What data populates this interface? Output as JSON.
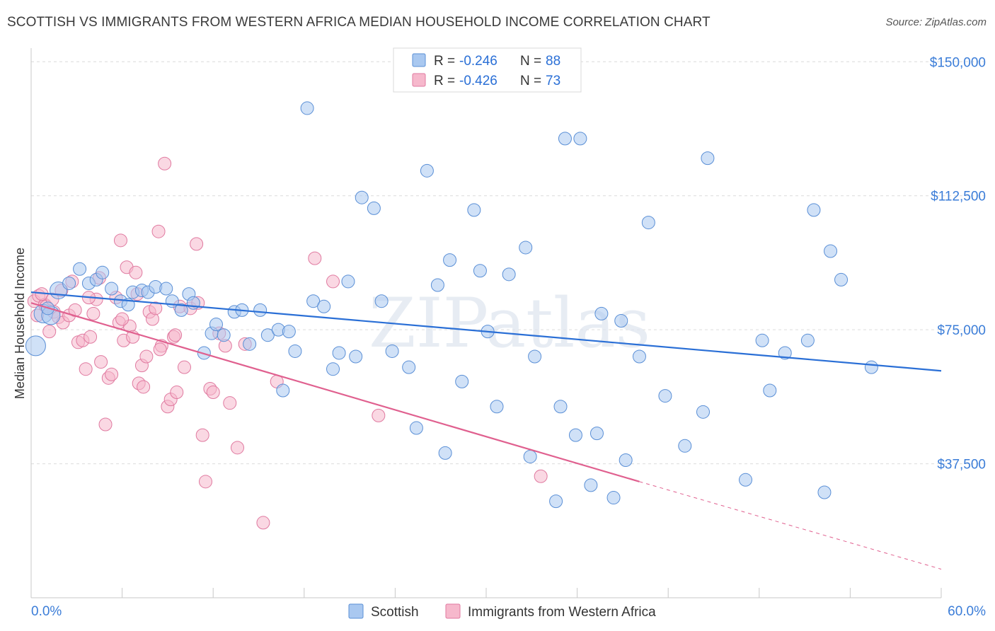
{
  "title": "SCOTTISH VS IMMIGRANTS FROM WESTERN AFRICA MEDIAN HOUSEHOLD INCOME CORRELATION CHART",
  "source": "Source: ZipAtlas.com",
  "watermark": "ZIPatlas",
  "colors": {
    "scottish_fill": "#a9c8f0",
    "scottish_stroke": "#5a8fd6",
    "scottish_line": "#2a6fd6",
    "immigrants_fill": "#f6b8cc",
    "immigrants_stroke": "#e07aa0",
    "immigrants_line": "#e0608f",
    "axis_label": "#3b7dd8",
    "grid": "#dcdcdc"
  },
  "legend": {
    "rows": [
      {
        "r_label": "R =",
        "r_value": "-0.246",
        "n_label": "N =",
        "n_value": "88"
      },
      {
        "r_label": "R =",
        "r_value": "-0.426",
        "n_label": "N =",
        "n_value": "73"
      }
    ]
  },
  "bottom_legend": [
    "Scottish",
    "Immigrants from Western Africa"
  ],
  "chart_data": {
    "type": "scatter",
    "xlabel": "",
    "ylabel": "Median Household Income",
    "x_tick_labels": [
      "0.0%",
      "60.0%"
    ],
    "y_tick_labels": [
      "$37,500",
      "$75,000",
      "$112,500",
      "$150,000"
    ],
    "xlim": [
      0,
      60
    ],
    "ylim": [
      0,
      155000
    ],
    "grid": true,
    "legend_position": "top-center",
    "series": [
      {
        "name": "Scottish",
        "trend": {
          "x": [
            0,
            60
          ],
          "y": [
            85500,
            63500
          ]
        },
        "points": [
          [
            0.3,
            70500
          ],
          [
            0.8,
            79500
          ],
          [
            1.3,
            79000
          ],
          [
            1.8,
            86000
          ],
          [
            2.5,
            88000
          ],
          [
            3.2,
            92000
          ],
          [
            3.8,
            88000
          ],
          [
            4.3,
            89000
          ],
          [
            4.7,
            91000
          ],
          [
            5.3,
            86500
          ],
          [
            5.9,
            83000
          ],
          [
            6.4,
            82000
          ],
          [
            6.7,
            85500
          ],
          [
            7.3,
            86000
          ],
          [
            7.7,
            85500
          ],
          [
            8.2,
            87000
          ],
          [
            8.9,
            86500
          ],
          [
            9.3,
            83000
          ],
          [
            9.9,
            80500
          ],
          [
            10.4,
            85000
          ],
          [
            10.7,
            82500
          ],
          [
            11.4,
            68500
          ],
          [
            11.9,
            74000
          ],
          [
            12.2,
            76500
          ],
          [
            12.7,
            73500
          ],
          [
            13.4,
            80000
          ],
          [
            13.9,
            80500
          ],
          [
            14.4,
            71000
          ],
          [
            15.1,
            80500
          ],
          [
            15.6,
            73500
          ],
          [
            16.3,
            75000
          ],
          [
            16.6,
            58000
          ],
          [
            17.0,
            74500
          ],
          [
            17.4,
            69000
          ],
          [
            18.2,
            137000
          ],
          [
            18.6,
            83000
          ],
          [
            19.3,
            81500
          ],
          [
            19.9,
            64000
          ],
          [
            20.3,
            68500
          ],
          [
            20.9,
            88500
          ],
          [
            21.4,
            67500
          ],
          [
            21.8,
            112000
          ],
          [
            22.6,
            109000
          ],
          [
            23.1,
            83000
          ],
          [
            23.8,
            69000
          ],
          [
            24.9,
            64500
          ],
          [
            26.1,
            119500
          ],
          [
            25.4,
            47500
          ],
          [
            26.8,
            87500
          ],
          [
            27.3,
            40500
          ],
          [
            27.6,
            94500
          ],
          [
            28.4,
            60500
          ],
          [
            29.2,
            108500
          ],
          [
            29.6,
            91500
          ],
          [
            30.1,
            74500
          ],
          [
            30.7,
            53500
          ],
          [
            31.5,
            90500
          ],
          [
            32.6,
            98000
          ],
          [
            32.9,
            39500
          ],
          [
            33.2,
            67500
          ],
          [
            34.6,
            27000
          ],
          [
            34.9,
            53500
          ],
          [
            35.2,
            128500
          ],
          [
            35.9,
            45500
          ],
          [
            36.2,
            128500
          ],
          [
            36.9,
            31500
          ],
          [
            37.3,
            46000
          ],
          [
            37.6,
            79500
          ],
          [
            38.4,
            28000
          ],
          [
            38.9,
            77500
          ],
          [
            39.2,
            38500
          ],
          [
            40.1,
            67500
          ],
          [
            40.7,
            105000
          ],
          [
            41.8,
            56500
          ],
          [
            43.1,
            42500
          ],
          [
            44.3,
            52000
          ],
          [
            44.6,
            123000
          ],
          [
            47.1,
            33000
          ],
          [
            48.2,
            72000
          ],
          [
            48.7,
            58000
          ],
          [
            49.7,
            68500
          ],
          [
            51.2,
            72000
          ],
          [
            51.6,
            108500
          ],
          [
            52.3,
            29500
          ],
          [
            52.7,
            97000
          ],
          [
            53.4,
            89000
          ],
          [
            55.4,
            64500
          ],
          [
            1.1,
            81000
          ]
        ]
      },
      {
        "name": "Immigrants from Western Africa",
        "trend": {
          "x": [
            0,
            40.1
          ],
          "y": [
            82500,
            32500
          ]
        },
        "trend_dashed": {
          "x": [
            40.1,
            60
          ],
          "y": [
            32500,
            8000
          ]
        },
        "points": [
          [
            0.2,
            83000
          ],
          [
            0.5,
            84500
          ],
          [
            0.9,
            82000
          ],
          [
            1.2,
            74500
          ],
          [
            1.5,
            80000
          ],
          [
            1.8,
            78500
          ],
          [
            2.1,
            77000
          ],
          [
            2.5,
            79000
          ],
          [
            2.9,
            80500
          ],
          [
            3.1,
            71500
          ],
          [
            3.4,
            72000
          ],
          [
            3.6,
            64000
          ],
          [
            3.9,
            73000
          ],
          [
            4.1,
            79500
          ],
          [
            4.3,
            83500
          ],
          [
            4.6,
            66000
          ],
          [
            4.9,
            48500
          ],
          [
            5.1,
            61500
          ],
          [
            5.3,
            62500
          ],
          [
            5.6,
            84000
          ],
          [
            5.8,
            77000
          ],
          [
            5.9,
            100000
          ],
          [
            6.1,
            72000
          ],
          [
            6.3,
            92500
          ],
          [
            6.5,
            76000
          ],
          [
            6.7,
            73000
          ],
          [
            6.9,
            91000
          ],
          [
            7.1,
            60000
          ],
          [
            7.3,
            65000
          ],
          [
            7.4,
            59000
          ],
          [
            7.6,
            67500
          ],
          [
            7.8,
            80000
          ],
          [
            8.0,
            78000
          ],
          [
            8.2,
            81000
          ],
          [
            8.4,
            102500
          ],
          [
            8.6,
            70500
          ],
          [
            8.8,
            121500
          ],
          [
            9.0,
            53500
          ],
          [
            9.2,
            55500
          ],
          [
            9.4,
            73000
          ],
          [
            9.6,
            57500
          ],
          [
            9.8,
            81500
          ],
          [
            10.1,
            64500
          ],
          [
            10.5,
            81000
          ],
          [
            10.9,
            99000
          ],
          [
            11.3,
            45500
          ],
          [
            11.5,
            32500
          ],
          [
            11.8,
            58500
          ],
          [
            12.0,
            57500
          ],
          [
            12.4,
            74000
          ],
          [
            12.8,
            70500
          ],
          [
            13.1,
            54500
          ],
          [
            13.6,
            42000
          ],
          [
            14.1,
            71000
          ],
          [
            15.3,
            21000
          ],
          [
            16.2,
            60500
          ],
          [
            18.7,
            95000
          ],
          [
            19.9,
            88500
          ],
          [
            22.9,
            51000
          ],
          [
            33.6,
            34000
          ],
          [
            0.4,
            79000
          ],
          [
            0.7,
            85000
          ],
          [
            1.0,
            81500
          ],
          [
            1.4,
            83500
          ],
          [
            2.0,
            86000
          ],
          [
            2.7,
            88500
          ],
          [
            3.8,
            84000
          ],
          [
            4.5,
            89500
          ],
          [
            6.0,
            78000
          ],
          [
            7.0,
            85000
          ],
          [
            8.5,
            69500
          ],
          [
            9.5,
            73500
          ],
          [
            11.0,
            82500
          ]
        ]
      }
    ]
  }
}
